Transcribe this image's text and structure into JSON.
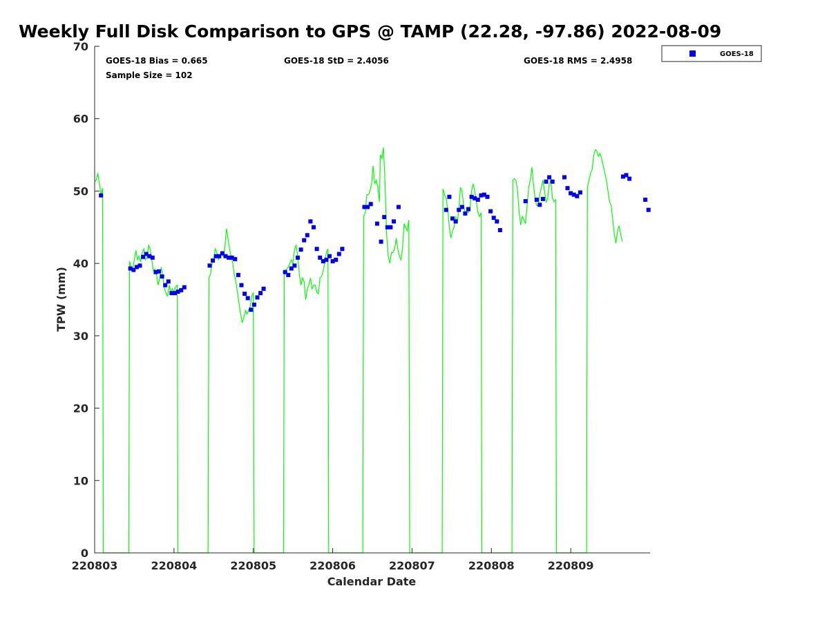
{
  "chart_data": {
    "type": "line+scatter",
    "title": "Weekly Full Disk Comparison to GPS @ TAMP (22.28, -97.86) 2022-08-09",
    "xlabel": "Calendar Date",
    "ylabel": "TPW (mm)",
    "xlim": [
      0,
      7
    ],
    "ylim": [
      0,
      70
    ],
    "x_ticks": [
      {
        "x": 0,
        "label": "220803"
      },
      {
        "x": 1,
        "label": "220804"
      },
      {
        "x": 2,
        "label": "220805"
      },
      {
        "x": 3,
        "label": "220806"
      },
      {
        "x": 4,
        "label": "220807"
      },
      {
        "x": 5,
        "label": "220808"
      },
      {
        "x": 6,
        "label": "220809"
      }
    ],
    "y_ticks": [
      {
        "y": 0,
        "label": "0"
      },
      {
        "y": 10,
        "label": "10"
      },
      {
        "y": 20,
        "label": "20"
      },
      {
        "y": 30,
        "label": "30"
      },
      {
        "y": 40,
        "label": "40"
      },
      {
        "y": 50,
        "label": "50"
      },
      {
        "y": 60,
        "label": "60"
      },
      {
        "y": 70,
        "label": "70"
      }
    ],
    "stats": {
      "bias": "GOES-18 Bias = 0.665",
      "sample": "Sample Size = 102",
      "std": "GOES-18 StD = 2.4056",
      "rms": "GOES-18 RMS = 2.4958"
    },
    "legend": {
      "label": "GOES-18",
      "position": "top-right, outside plot"
    },
    "colors": {
      "gps_line": "#00ff00",
      "goes_marker": "#0000ee",
      "axis": "#262626"
    },
    "gps_series": {
      "name": "GPS",
      "points": [
        [
          0.0,
          51.3
        ],
        [
          0.02,
          51.5
        ],
        [
          0.04,
          52.5
        ],
        [
          0.06,
          51.0
        ],
        [
          0.08,
          49.5
        ],
        [
          0.1,
          50.4
        ],
        [
          0.11,
          0.0
        ],
        [
          0.43,
          0.0
        ],
        [
          0.44,
          40.3
        ],
        [
          0.46,
          39.5
        ],
        [
          0.48,
          39.0
        ],
        [
          0.5,
          40.5
        ],
        [
          0.52,
          41.8
        ],
        [
          0.54,
          40.5
        ],
        [
          0.56,
          41.0
        ],
        [
          0.58,
          40.2
        ],
        [
          0.6,
          41.5
        ],
        [
          0.62,
          42.0
        ],
        [
          0.64,
          40.5
        ],
        [
          0.66,
          40.8
        ],
        [
          0.68,
          42.5
        ],
        [
          0.7,
          42.0
        ],
        [
          0.72,
          40.5
        ],
        [
          0.74,
          39.0
        ],
        [
          0.76,
          39.2
        ],
        [
          0.78,
          38.5
        ],
        [
          0.8,
          37.0
        ],
        [
          0.82,
          38.0
        ],
        [
          0.84,
          39.5
        ],
        [
          0.86,
          38.0
        ],
        [
          0.88,
          36.5
        ],
        [
          0.9,
          35.8
        ],
        [
          0.92,
          35.5
        ],
        [
          0.94,
          37.0
        ],
        [
          0.96,
          36.0
        ],
        [
          0.98,
          36.5
        ],
        [
          1.0,
          36.0
        ],
        [
          1.02,
          36.8
        ],
        [
          1.04,
          37.0
        ],
        [
          1.05,
          0.0
        ],
        [
          1.43,
          0.0
        ],
        [
          1.44,
          38.0
        ],
        [
          1.46,
          38.5
        ],
        [
          1.48,
          40.0
        ],
        [
          1.5,
          40.5
        ],
        [
          1.52,
          42.0
        ],
        [
          1.54,
          41.5
        ],
        [
          1.56,
          40.5
        ],
        [
          1.58,
          41.0
        ],
        [
          1.6,
          41.2
        ],
        [
          1.62,
          41.0
        ],
        [
          1.64,
          42.0
        ],
        [
          1.66,
          44.8
        ],
        [
          1.68,
          43.5
        ],
        [
          1.7,
          42.0
        ],
        [
          1.72,
          41.0
        ],
        [
          1.74,
          40.0
        ],
        [
          1.76,
          38.5
        ],
        [
          1.78,
          37.5
        ],
        [
          1.8,
          36.0
        ],
        [
          1.82,
          34.5
        ],
        [
          1.84,
          33.0
        ],
        [
          1.86,
          31.8
        ],
        [
          1.88,
          32.5
        ],
        [
          1.9,
          33.5
        ],
        [
          1.92,
          33.0
        ],
        [
          1.94,
          33.5
        ],
        [
          1.96,
          34.0
        ],
        [
          1.98,
          35.5
        ],
        [
          2.0,
          36.0
        ],
        [
          2.01,
          0.0
        ],
        [
          2.38,
          0.0
        ],
        [
          2.39,
          39.0
        ],
        [
          2.42,
          39.2
        ],
        [
          2.44,
          39.5
        ],
        [
          2.46,
          40.0
        ],
        [
          2.48,
          40.5
        ],
        [
          2.5,
          40.0
        ],
        [
          2.52,
          42.0
        ],
        [
          2.54,
          42.5
        ],
        [
          2.56,
          41.0
        ],
        [
          2.58,
          38.5
        ],
        [
          2.6,
          37.0
        ],
        [
          2.62,
          38.0
        ],
        [
          2.64,
          37.5
        ],
        [
          2.66,
          35.0
        ],
        [
          2.68,
          36.5
        ],
        [
          2.7,
          37.0
        ],
        [
          2.72,
          38.0
        ],
        [
          2.74,
          36.5
        ],
        [
          2.76,
          37.0
        ],
        [
          2.78,
          37.0
        ],
        [
          2.8,
          36.0
        ],
        [
          2.82,
          35.8
        ],
        [
          2.84,
          38.0
        ],
        [
          2.86,
          38.2
        ],
        [
          2.88,
          39.0
        ],
        [
          2.9,
          40.0
        ],
        [
          2.92,
          41.5
        ],
        [
          2.94,
          42.0
        ],
        [
          2.95,
          0.0
        ],
        [
          3.38,
          0.0
        ],
        [
          3.39,
          46.5
        ],
        [
          3.41,
          47.0
        ],
        [
          3.43,
          49.5
        ],
        [
          3.45,
          49.5
        ],
        [
          3.47,
          50.0
        ],
        [
          3.49,
          51.0
        ],
        [
          3.51,
          53.5
        ],
        [
          3.53,
          51.0
        ],
        [
          3.55,
          51.5
        ],
        [
          3.57,
          50.5
        ],
        [
          3.59,
          48.5
        ],
        [
          3.6,
          55.0
        ],
        [
          3.62,
          54.5
        ],
        [
          3.64,
          56.0
        ],
        [
          3.66,
          51.0
        ],
        [
          3.68,
          44.0
        ],
        [
          3.7,
          41.0
        ],
        [
          3.72,
          40.0
        ],
        [
          3.74,
          41.5
        ],
        [
          3.76,
          41.5
        ],
        [
          3.78,
          42.0
        ],
        [
          3.8,
          43.5
        ],
        [
          3.82,
          42.0
        ],
        [
          3.84,
          41.0
        ],
        [
          3.86,
          40.5
        ],
        [
          3.88,
          42.0
        ],
        [
          3.9,
          45.5
        ],
        [
          3.92,
          45.0
        ],
        [
          3.94,
          44.5
        ],
        [
          3.96,
          46.0
        ],
        [
          3.97,
          0.0
        ],
        [
          4.38,
          0.0
        ],
        [
          4.39,
          50.3
        ],
        [
          4.41,
          49.5
        ],
        [
          4.43,
          49.0
        ],
        [
          4.45,
          47.5
        ],
        [
          4.47,
          45.0
        ],
        [
          4.49,
          43.5
        ],
        [
          4.51,
          44.5
        ],
        [
          4.53,
          45.0
        ],
        [
          4.55,
          46.5
        ],
        [
          4.57,
          45.5
        ],
        [
          4.59,
          47.5
        ],
        [
          4.61,
          50.5
        ],
        [
          4.63,
          50.0
        ],
        [
          4.65,
          48.0
        ],
        [
          4.67,
          47.0
        ],
        [
          4.69,
          47.2
        ],
        [
          4.71,
          47.0
        ],
        [
          4.73,
          47.5
        ],
        [
          4.75,
          50.0
        ],
        [
          4.77,
          51.0
        ],
        [
          4.79,
          50.0
        ],
        [
          4.81,
          48.5
        ],
        [
          4.83,
          47.0
        ],
        [
          4.85,
          46.5
        ],
        [
          4.87,
          47.0
        ],
        [
          4.88,
          0.0
        ],
        [
          5.26,
          0.0
        ],
        [
          5.27,
          51.5
        ],
        [
          5.29,
          51.7
        ],
        [
          5.31,
          51.5
        ],
        [
          5.33,
          50.0
        ],
        [
          5.35,
          47.0
        ],
        [
          5.37,
          45.3
        ],
        [
          5.39,
          46.5
        ],
        [
          5.41,
          46.0
        ],
        [
          5.43,
          45.5
        ],
        [
          5.45,
          48.0
        ],
        [
          5.47,
          50.5
        ],
        [
          5.49,
          51.5
        ],
        [
          5.51,
          53.3
        ],
        [
          5.53,
          51.0
        ],
        [
          5.55,
          49.0
        ],
        [
          5.57,
          48.0
        ],
        [
          5.59,
          48.0
        ],
        [
          5.61,
          49.5
        ],
        [
          5.63,
          50.5
        ],
        [
          5.65,
          51.5
        ],
        [
          5.67,
          50.0
        ],
        [
          5.69,
          48.5
        ],
        [
          5.71,
          49.0
        ],
        [
          5.73,
          51.0
        ],
        [
          5.75,
          51.5
        ],
        [
          5.77,
          49.0
        ],
        [
          5.79,
          48.5
        ],
        [
          5.81,
          48.8
        ],
        [
          5.82,
          0.0
        ],
        [
          6.2,
          0.0
        ],
        [
          6.21,
          50.5
        ],
        [
          6.23,
          51.5
        ],
        [
          6.25,
          52.5
        ],
        [
          6.27,
          53.0
        ],
        [
          6.29,
          55.0
        ],
        [
          6.31,
          55.7
        ],
        [
          6.33,
          55.5
        ],
        [
          6.35,
          54.8
        ],
        [
          6.37,
          55.2
        ],
        [
          6.39,
          54.5
        ],
        [
          6.41,
          53.5
        ],
        [
          6.43,
          52.5
        ],
        [
          6.45,
          51.5
        ],
        [
          6.47,
          50.0
        ],
        [
          6.49,
          48.5
        ],
        [
          6.51,
          48.0
        ],
        [
          6.53,
          46.0
        ],
        [
          6.55,
          44.0
        ],
        [
          6.57,
          42.8
        ],
        [
          6.59,
          44.5
        ],
        [
          6.61,
          45.2
        ],
        [
          6.63,
          44.0
        ],
        [
          6.65,
          43.0
        ]
      ]
    },
    "goes_series": {
      "name": "GOES-18",
      "points": [
        [
          0.08,
          49.4
        ],
        [
          0.45,
          39.3
        ],
        [
          0.49,
          39.1
        ],
        [
          0.53,
          39.5
        ],
        [
          0.57,
          39.7
        ],
        [
          0.61,
          40.9
        ],
        [
          0.65,
          41.3
        ],
        [
          0.69,
          41.0
        ],
        [
          0.73,
          40.8
        ],
        [
          0.77,
          38.8
        ],
        [
          0.81,
          38.9
        ],
        [
          0.85,
          38.2
        ],
        [
          0.89,
          37.0
        ],
        [
          0.93,
          37.5
        ],
        [
          0.97,
          35.9
        ],
        [
          1.01,
          35.9
        ],
        [
          1.05,
          36.1
        ],
        [
          1.09,
          36.3
        ],
        [
          1.13,
          36.7
        ],
        [
          1.45,
          39.7
        ],
        [
          1.49,
          40.4
        ],
        [
          1.53,
          41.0
        ],
        [
          1.57,
          41.0
        ],
        [
          1.61,
          41.4
        ],
        [
          1.65,
          41.0
        ],
        [
          1.69,
          40.8
        ],
        [
          1.73,
          40.8
        ],
        [
          1.77,
          40.6
        ],
        [
          1.81,
          38.4
        ],
        [
          1.85,
          37.0
        ],
        [
          1.89,
          35.8
        ],
        [
          1.93,
          35.2
        ],
        [
          1.97,
          33.6
        ],
        [
          2.01,
          34.3
        ],
        [
          2.05,
          35.3
        ],
        [
          2.09,
          35.9
        ],
        [
          2.13,
          36.5
        ],
        [
          2.4,
          38.8
        ],
        [
          2.44,
          38.4
        ],
        [
          2.48,
          39.3
        ],
        [
          2.52,
          39.7
        ],
        [
          2.56,
          40.8
        ],
        [
          2.6,
          41.9
        ],
        [
          2.64,
          43.2
        ],
        [
          2.68,
          43.9
        ],
        [
          2.72,
          45.8
        ],
        [
          2.76,
          45.0
        ],
        [
          2.8,
          42.0
        ],
        [
          2.84,
          40.8
        ],
        [
          2.88,
          40.3
        ],
        [
          2.92,
          40.5
        ],
        [
          2.96,
          41.0
        ],
        [
          3.0,
          40.3
        ],
        [
          3.04,
          40.5
        ],
        [
          3.08,
          41.3
        ],
        [
          3.12,
          42.0
        ],
        [
          3.4,
          47.8
        ],
        [
          3.44,
          47.8
        ],
        [
          3.48,
          48.2
        ],
        [
          3.56,
          45.5
        ],
        [
          3.61,
          43.0
        ],
        [
          3.65,
          46.4
        ],
        [
          3.69,
          45.0
        ],
        [
          3.73,
          45.0
        ],
        [
          3.77,
          45.8
        ],
        [
          3.83,
          47.8
        ],
        [
          4.43,
          47.4
        ],
        [
          4.47,
          49.2
        ],
        [
          4.51,
          46.2
        ],
        [
          4.55,
          45.8
        ],
        [
          4.59,
          47.4
        ],
        [
          4.63,
          47.8
        ],
        [
          4.67,
          46.9
        ],
        [
          4.71,
          47.5
        ],
        [
          4.75,
          49.2
        ],
        [
          4.79,
          49.0
        ],
        [
          4.83,
          48.8
        ],
        [
          4.87,
          49.4
        ],
        [
          4.91,
          49.5
        ],
        [
          4.95,
          49.2
        ],
        [
          4.99,
          47.2
        ],
        [
          5.03,
          46.3
        ],
        [
          5.07,
          45.8
        ],
        [
          5.11,
          44.6
        ],
        [
          5.43,
          48.6
        ],
        [
          5.57,
          48.8
        ],
        [
          5.61,
          48.1
        ],
        [
          5.65,
          48.9
        ],
        [
          5.69,
          51.3
        ],
        [
          5.73,
          51.9
        ],
        [
          5.77,
          51.3
        ],
        [
          5.92,
          51.9
        ],
        [
          5.96,
          50.4
        ],
        [
          6.0,
          49.7
        ],
        [
          6.04,
          49.5
        ],
        [
          6.08,
          49.3
        ],
        [
          6.12,
          49.8
        ],
        [
          6.66,
          52.0
        ],
        [
          6.7,
          52.2
        ],
        [
          6.74,
          51.7
        ],
        [
          6.94,
          48.8
        ],
        [
          6.98,
          47.4
        ]
      ]
    }
  }
}
